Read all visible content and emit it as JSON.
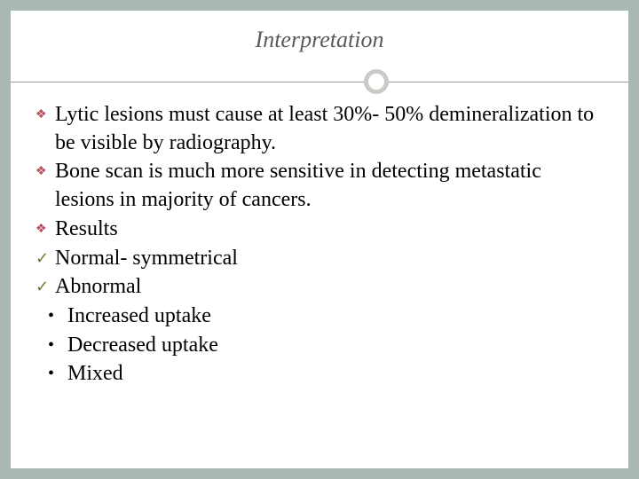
{
  "title": "Interpretation",
  "colors": {
    "slide_bg": "#aab8b4",
    "inner_bg": "#ffffff",
    "title_color": "#5a5a5a",
    "divider_color": "#9a9a9a",
    "circle_border": "#c9ccc6",
    "diamond_color": "#b84a5a",
    "check_color": "#6b7a3a",
    "body_text_color": "#000000"
  },
  "typography": {
    "title_fontsize": 26,
    "title_style": "italic",
    "body_fontsize": 24,
    "font_family": "Georgia serif"
  },
  "bullets": [
    {
      "marker": "diamond",
      "text": "Lytic lesions must cause at least 30%- 50% demineralization to be visible by radiography."
    },
    {
      "marker": "diamond",
      "text": "Bone scan is much more sensitive in detecting metastatic lesions in majority of cancers."
    },
    {
      "marker": "diamond",
      "text": "Results"
    },
    {
      "marker": "check",
      "text": "Normal- symmetrical"
    },
    {
      "marker": "check",
      "text": "Abnormal"
    },
    {
      "marker": "dot",
      "text": "Increased uptake"
    },
    {
      "marker": "dot",
      "text": "Decreased uptake"
    },
    {
      "marker": "dot",
      "text": "Mixed"
    }
  ]
}
